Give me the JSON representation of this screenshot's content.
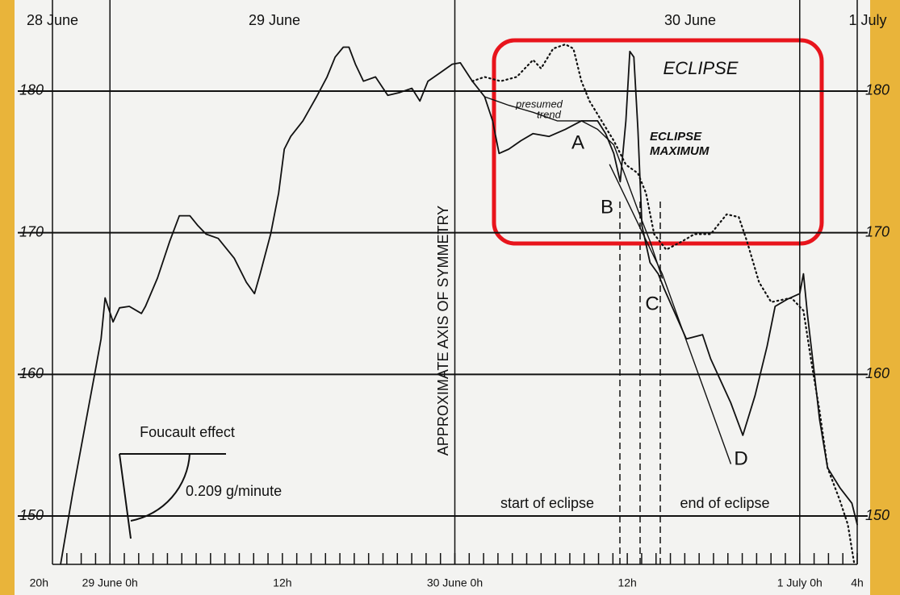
{
  "chart_data": {
    "type": "line",
    "day_labels": [
      "28 June",
      "29 June",
      "30 June",
      "1 July"
    ],
    "xlim": [
      -4,
      52
    ],
    "xticks": [
      {
        "value": -4,
        "label": "20h"
      },
      {
        "value": 0,
        "label": "29 June 0h"
      },
      {
        "value": 12,
        "label": "12h"
      },
      {
        "value": 24,
        "label": "30 June 0h"
      },
      {
        "value": 36,
        "label": "12h"
      },
      {
        "value": 48,
        "label": "1 July 0h"
      },
      {
        "value": 52,
        "label": "4h"
      }
    ],
    "xticks_minor": [
      -3,
      -2,
      -1,
      0,
      1,
      2,
      3,
      4,
      5,
      6,
      7,
      8,
      9,
      10,
      11,
      12,
      13,
      14,
      15,
      16,
      17,
      18,
      19,
      20,
      21,
      22,
      23,
      24,
      25,
      26,
      27,
      28,
      29,
      30,
      31,
      32,
      33,
      34,
      35,
      36,
      37,
      38,
      39,
      40,
      41,
      42,
      43,
      44,
      45,
      46,
      47,
      48,
      49,
      50,
      51,
      52
    ],
    "ylim": [
      146.5,
      186.5
    ],
    "yticks": [
      150,
      160,
      170,
      180
    ],
    "grid": true,
    "series": [
      {
        "color": "#111111",
        "line_style": "solid",
        "x": [
          -3.43,
          -2.58,
          -1.74,
          -1.01,
          -0.62,
          -0.34,
          0.22,
          0.67,
          1.35,
          2.19,
          2.47,
          3.31,
          4.16,
          4.83,
          5.56,
          6.12,
          6.69,
          7.53,
          8.65,
          9.49,
          10.06,
          10.45,
          11.18,
          11.74,
          12.13,
          12.58,
          13.43,
          14.38,
          15.11,
          15.67,
          16.24,
          16.63,
          17.08,
          17.64,
          18.48,
          19.33,
          20.17,
          21.01,
          21.57,
          22.13,
          22.98,
          23.82,
          24.38,
          25.22,
          26.07,
          26.63,
          27.08,
          27.75,
          28.6,
          29.44,
          30.56,
          31.69,
          32.81,
          33.93,
          34.49,
          35.06,
          35.51,
          35.9,
          36.18,
          36.46,
          36.74,
          37.02,
          37.58,
          38.15,
          38.54,
          40.11,
          41.24,
          41.8,
          43.2,
          44.04,
          44.89,
          45.73,
          46.29,
          47.13,
          48.0,
          48.26,
          48.54,
          48.99,
          49.38,
          49.94,
          50.79,
          51.63,
          52.0
        ],
        "values": [
          146.6,
          151.7,
          156.3,
          160.3,
          162.5,
          165.4,
          163.7,
          164.7,
          164.8,
          164.3,
          164.8,
          166.8,
          169.4,
          171.2,
          171.2,
          170.5,
          169.9,
          169.6,
          168.2,
          166.5,
          165.7,
          167.1,
          169.9,
          172.8,
          175.9,
          176.8,
          177.9,
          179.6,
          181.0,
          182.4,
          183.1,
          183.1,
          181.9,
          180.7,
          181.0,
          179.7,
          179.9,
          180.2,
          179.3,
          180.7,
          181.3,
          181.9,
          182.0,
          180.7,
          179.6,
          177.9,
          175.6,
          175.9,
          176.5,
          177.0,
          176.8,
          177.3,
          177.9,
          177.9,
          177.0,
          175.6,
          173.6,
          177.9,
          182.8,
          182.4,
          177.3,
          170.5,
          167.9,
          167.1,
          166.1,
          162.5,
          162.8,
          161.1,
          158.0,
          155.7,
          158.5,
          162.0,
          164.8,
          165.3,
          165.7,
          167.1,
          164.2,
          160.3,
          156.8,
          153.4,
          152.0,
          150.9,
          149.4
        ]
      },
      {
        "color": "#111111",
        "line_style": "dotted",
        "x": [
          25.22,
          26.07,
          27.19,
          28.31,
          29.44,
          30.0,
          30.84,
          31.69,
          32.25,
          32.81,
          33.37,
          34.21,
          35.06,
          35.9,
          36.74,
          37.3,
          37.87,
          38.71,
          39.83,
          40.67,
          41.8,
          42.92,
          43.76,
          44.33,
          45.17,
          46.01,
          47.42,
          48.26,
          48.82,
          49.38,
          49.94,
          50.79,
          51.35,
          51.8
        ],
        "values": [
          180.7,
          181.0,
          180.7,
          181.0,
          182.2,
          181.6,
          183.0,
          183.3,
          183.0,
          180.7,
          179.3,
          177.9,
          176.5,
          174.8,
          174.2,
          172.8,
          169.9,
          168.8,
          169.4,
          169.9,
          169.9,
          171.3,
          171.1,
          169.4,
          166.5,
          165.1,
          165.4,
          164.5,
          160.8,
          157.4,
          153.4,
          151.1,
          149.4,
          146.6
        ]
      },
      {
        "color": "#111111",
        "line_style": "thin",
        "x": [
          26.07,
          27.75,
          29.44,
          31.12,
          32.81,
          33.93,
          35.06,
          35.9,
          36.74,
          37.58,
          38.43
        ],
        "values": [
          179.6,
          179.0,
          178.5,
          177.9,
          177.9,
          177.3,
          176.2,
          173.9,
          171.6,
          169.4,
          166.8
        ]
      },
      {
        "color": "#111111",
        "line_style": "thin",
        "x": [
          34.78,
          38.43,
          43.2
        ],
        "values": [
          174.8,
          167.1,
          153.7
        ]
      }
    ],
    "annotations": {
      "eclipse": "ECLIPSE",
      "presumed_trend": [
        "presumed",
        "trend"
      ],
      "eclipse_maximum": [
        "ECLIPSE",
        "MAXIMUM"
      ],
      "a": "A",
      "b": "B",
      "c": "C",
      "d": "D",
      "axis_of_symmetry": "APPROXIMATE AXIS OF SYMMETRY",
      "foucault": "Foucault effect",
      "rate": "0.209 g/minute",
      "start": "start of eclipse",
      "end": "end of eclipse"
    },
    "highlight_color": "#e8141c"
  }
}
